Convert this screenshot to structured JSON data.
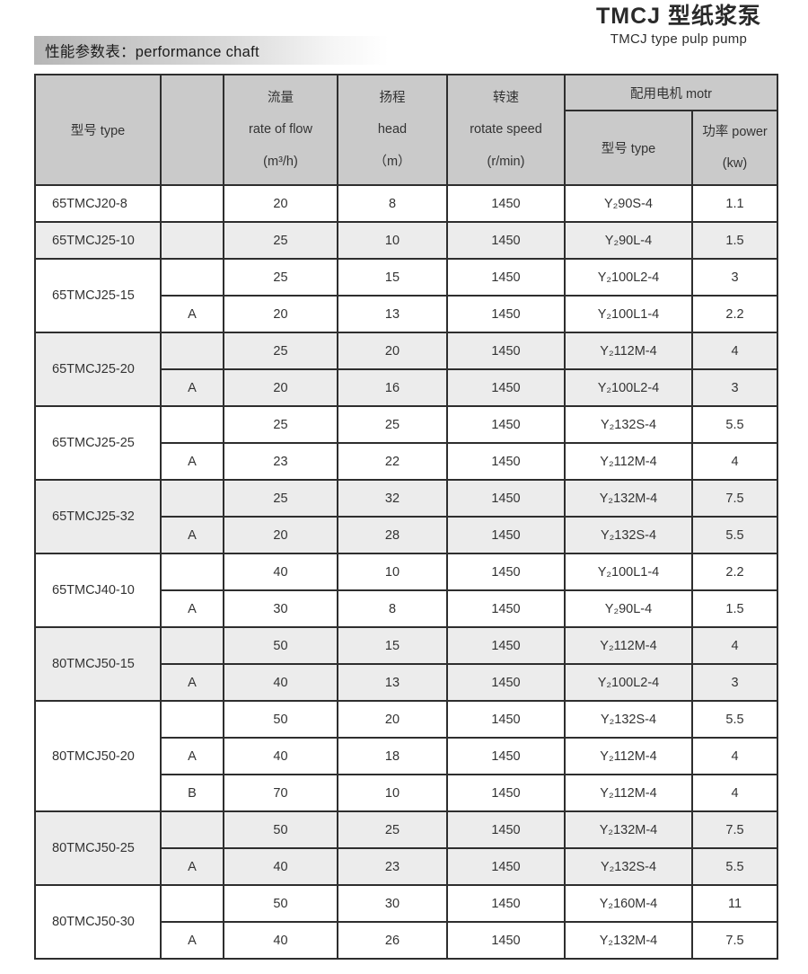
{
  "page": {
    "title_cn": "TMCJ 型纸浆泵",
    "title_en": "TMCJ type pulp pump",
    "section_label": "性能参数表：performance chaft"
  },
  "colors": {
    "header_bg": "#cacaca",
    "stripe_bg": "#ececec",
    "border": "#2e2e2e",
    "strip_gradient_start": "#b6b6b6"
  },
  "table": {
    "headers": {
      "model": "型号  type",
      "variant": "",
      "flow": [
        "流量",
        "rate of flow",
        "(m³/h)"
      ],
      "head": [
        "扬程",
        "head",
        "（m）"
      ],
      "speed": [
        "转速",
        "rotate speed",
        "(r/min)"
      ],
      "motor_group": "配用电机  motr",
      "motor_model": "型号  type",
      "motor_power": [
        "功率  power",
        "(kw)"
      ]
    },
    "groups": [
      {
        "model": "65TMCJ20-8",
        "shade": "white",
        "rows": [
          {
            "variant": "",
            "flow": "20",
            "head": "8",
            "speed": "1450",
            "motor": "Y₂90S-4",
            "power": "1.1"
          }
        ]
      },
      {
        "model": "65TMCJ25-10",
        "shade": "gray",
        "rows": [
          {
            "variant": "",
            "flow": "25",
            "head": "10",
            "speed": "1450",
            "motor": "Y₂90L-4",
            "power": "1.5"
          }
        ]
      },
      {
        "model": "65TMCJ25-15",
        "shade": "white",
        "rows": [
          {
            "variant": "",
            "flow": "25",
            "head": "15",
            "speed": "1450",
            "motor": "Y₂100L2-4",
            "power": "3"
          },
          {
            "variant": "A",
            "flow": "20",
            "head": "13",
            "speed": "1450",
            "motor": "Y₂100L1-4",
            "power": "2.2"
          }
        ]
      },
      {
        "model": "65TMCJ25-20",
        "shade": "gray",
        "rows": [
          {
            "variant": "",
            "flow": "25",
            "head": "20",
            "speed": "1450",
            "motor": "Y₂112M-4",
            "power": "4"
          },
          {
            "variant": "A",
            "flow": "20",
            "head": "16",
            "speed": "1450",
            "motor": "Y₂100L2-4",
            "power": "3"
          }
        ]
      },
      {
        "model": "65TMCJ25-25",
        "shade": "white",
        "rows": [
          {
            "variant": "",
            "flow": "25",
            "head": "25",
            "speed": "1450",
            "motor": "Y₂132S-4",
            "power": "5.5"
          },
          {
            "variant": "A",
            "flow": "23",
            "head": "22",
            "speed": "1450",
            "motor": "Y₂112M-4",
            "power": "4"
          }
        ]
      },
      {
        "model": "65TMCJ25-32",
        "shade": "gray",
        "rows": [
          {
            "variant": "",
            "flow": "25",
            "head": "32",
            "speed": "1450",
            "motor": "Y₂132M-4",
            "power": "7.5"
          },
          {
            "variant": "A",
            "flow": "20",
            "head": "28",
            "speed": "1450",
            "motor": "Y₂132S-4",
            "power": "5.5"
          }
        ]
      },
      {
        "model": "65TMCJ40-10",
        "shade": "white",
        "rows": [
          {
            "variant": "",
            "flow": "40",
            "head": "10",
            "speed": "1450",
            "motor": "Y₂100L1-4",
            "power": "2.2"
          },
          {
            "variant": "A",
            "flow": "30",
            "head": "8",
            "speed": "1450",
            "motor": "Y₂90L-4",
            "power": "1.5"
          }
        ]
      },
      {
        "model": "80TMCJ50-15",
        "shade": "gray",
        "rows": [
          {
            "variant": "",
            "flow": "50",
            "head": "15",
            "speed": "1450",
            "motor": "Y₂112M-4",
            "power": "4"
          },
          {
            "variant": "A",
            "flow": "40",
            "head": "13",
            "speed": "1450",
            "motor": "Y₂100L2-4",
            "power": "3"
          }
        ]
      },
      {
        "model": "80TMCJ50-20",
        "shade": "white",
        "rows": [
          {
            "variant": "",
            "flow": "50",
            "head": "20",
            "speed": "1450",
            "motor": "Y₂132S-4",
            "power": "5.5"
          },
          {
            "variant": "A",
            "flow": "40",
            "head": "18",
            "speed": "1450",
            "motor": "Y₂112M-4",
            "power": "4"
          },
          {
            "variant": "B",
            "flow": "70",
            "head": "10",
            "speed": "1450",
            "motor": "Y₂112M-4",
            "power": "4"
          }
        ]
      },
      {
        "model": "80TMCJ50-25",
        "shade": "gray",
        "rows": [
          {
            "variant": "",
            "flow": "50",
            "head": "25",
            "speed": "1450",
            "motor": "Y₂132M-4",
            "power": "7.5"
          },
          {
            "variant": "A",
            "flow": "40",
            "head": "23",
            "speed": "1450",
            "motor": "Y₂132S-4",
            "power": "5.5"
          }
        ]
      },
      {
        "model": "80TMCJ50-30",
        "shade": "white",
        "rows": [
          {
            "variant": "",
            "flow": "50",
            "head": "30",
            "speed": "1450",
            "motor": "Y₂160M-4",
            "power": "11"
          },
          {
            "variant": "A",
            "flow": "40",
            "head": "26",
            "speed": "1450",
            "motor": "Y₂132M-4",
            "power": "7.5"
          }
        ]
      }
    ]
  }
}
